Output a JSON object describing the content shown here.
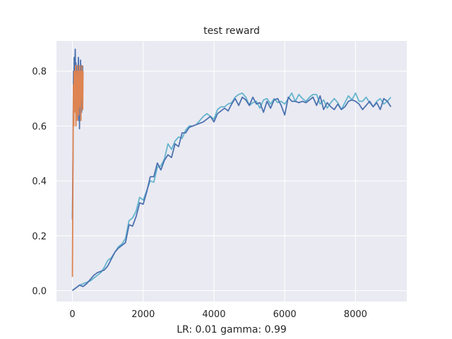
{
  "chart_data": {
    "type": "line",
    "title": "test reward",
    "xlabel": "LR: 0.01 gamma: 0.99",
    "ylabel": "",
    "xlim": [
      -450,
      9450
    ],
    "ylim": [
      -0.04,
      0.91
    ],
    "xticks": [
      0,
      2000,
      4000,
      6000,
      8000
    ],
    "xtick_labels": [
      "0",
      "2000",
      "4000",
      "6000",
      "8000"
    ],
    "yticks": [
      0.0,
      0.2,
      0.4,
      0.6,
      0.8
    ],
    "ytick_labels": [
      "0.0",
      "0.2",
      "0.4",
      "0.6",
      "0.8"
    ],
    "grid": true,
    "background": "#eaeaf2",
    "series": [
      {
        "color": "#4c72b0",
        "x": [
          0,
          100,
          200,
          300,
          400,
          500,
          600,
          700,
          800,
          900,
          1000,
          1100,
          1200,
          1300,
          1400,
          1500,
          1600,
          1700,
          1800,
          1900,
          2000,
          2100,
          2200,
          2300,
          2400,
          2500,
          2600,
          2700,
          2800,
          2900,
          3000,
          3100,
          3200,
          3300,
          3400,
          3500,
          3600,
          3700,
          3800,
          3900,
          4000,
          4100,
          4200,
          4300,
          4400,
          4500,
          4600,
          4700,
          4800,
          4900,
          5000,
          5100,
          5200,
          5300,
          5400,
          5500,
          5600,
          5700,
          5800,
          5900,
          6000,
          6100,
          6200,
          6300,
          6400,
          6500,
          6600,
          6700,
          6800,
          6900,
          7000,
          7100,
          7200,
          7300,
          7400,
          7500,
          7600,
          7700,
          7800,
          7900,
          8000,
          8100,
          8200,
          8300,
          8400,
          8500,
          8600,
          8700,
          8800,
          8900,
          9000
        ],
        "y": [
          0.0,
          0.01,
          0.02,
          0.015,
          0.025,
          0.04,
          0.055,
          0.065,
          0.07,
          0.075,
          0.09,
          0.115,
          0.14,
          0.155,
          0.165,
          0.175,
          0.24,
          0.235,
          0.27,
          0.32,
          0.315,
          0.36,
          0.415,
          0.415,
          0.465,
          0.44,
          0.475,
          0.495,
          0.485,
          0.535,
          0.525,
          0.575,
          0.575,
          0.595,
          0.6,
          0.605,
          0.61,
          0.615,
          0.625,
          0.635,
          0.615,
          0.645,
          0.655,
          0.665,
          0.655,
          0.68,
          0.7,
          0.675,
          0.705,
          0.695,
          0.675,
          0.705,
          0.68,
          0.685,
          0.65,
          0.69,
          0.665,
          0.695,
          0.7,
          0.675,
          0.64,
          0.705,
          0.69,
          0.69,
          0.685,
          0.69,
          0.685,
          0.695,
          0.705,
          0.675,
          0.71,
          0.66,
          0.685,
          0.67,
          0.66,
          0.68,
          0.66,
          0.67,
          0.69,
          0.695,
          0.69,
          0.68,
          0.66,
          0.675,
          0.69,
          0.67,
          0.685,
          0.66,
          0.7,
          0.69,
          0.67
        ]
      },
      {
        "color": "#64b5cd",
        "x": [
          0,
          100,
          200,
          300,
          400,
          500,
          600,
          700,
          800,
          900,
          1000,
          1100,
          1200,
          1300,
          1400,
          1500,
          1600,
          1700,
          1800,
          1900,
          2000,
          2100,
          2200,
          2300,
          2400,
          2500,
          2600,
          2700,
          2800,
          2900,
          3000,
          3100,
          3200,
          3300,
          3400,
          3500,
          3600,
          3700,
          3800,
          3900,
          4000,
          4100,
          4200,
          4300,
          4400,
          4500,
          4600,
          4700,
          4800,
          4900,
          5000,
          5100,
          5200,
          5300,
          5400,
          5500,
          5600,
          5700,
          5800,
          5900,
          6000,
          6100,
          6200,
          6300,
          6400,
          6500,
          6600,
          6700,
          6800,
          6900,
          7000,
          7100,
          7200,
          7300,
          7400,
          7500,
          7600,
          7700,
          7800,
          7900,
          8000,
          8100,
          8200,
          8300,
          8400,
          8500,
          8600,
          8700,
          8800,
          8900,
          9000
        ],
        "y": [
          0.0,
          0.01,
          0.02,
          0.025,
          0.03,
          0.035,
          0.045,
          0.055,
          0.065,
          0.085,
          0.11,
          0.12,
          0.14,
          0.16,
          0.17,
          0.19,
          0.255,
          0.265,
          0.29,
          0.34,
          0.33,
          0.365,
          0.4,
          0.395,
          0.45,
          0.455,
          0.48,
          0.535,
          0.515,
          0.545,
          0.56,
          0.555,
          0.585,
          0.6,
          0.6,
          0.605,
          0.62,
          0.635,
          0.645,
          0.635,
          0.625,
          0.66,
          0.67,
          0.67,
          0.68,
          0.685,
          0.705,
          0.715,
          0.72,
          0.705,
          0.675,
          0.685,
          0.69,
          0.665,
          0.695,
          0.7,
          0.68,
          0.7,
          0.685,
          0.69,
          0.68,
          0.7,
          0.72,
          0.69,
          0.715,
          0.7,
          0.69,
          0.705,
          0.715,
          0.715,
          0.68,
          0.695,
          0.665,
          0.685,
          0.7,
          0.685,
          0.66,
          0.685,
          0.71,
          0.695,
          0.72,
          0.69,
          0.69,
          0.705,
          0.685,
          0.67,
          0.69,
          0.7,
          0.68,
          0.69,
          0.705
        ]
      },
      {
        "color": "#4c72b0",
        "x": [
          0,
          10,
          20,
          30,
          40,
          50,
          60,
          70,
          80,
          90,
          100,
          110,
          120,
          130,
          140,
          150,
          160,
          170,
          180,
          190,
          200,
          210,
          220,
          230,
          240,
          250,
          260,
          270,
          280,
          290
        ],
        "y": [
          0.26,
          0.4,
          0.6,
          0.8,
          0.65,
          0.85,
          0.7,
          0.82,
          0.88,
          0.75,
          0.83,
          0.7,
          0.8,
          0.65,
          0.82,
          0.72,
          0.78,
          0.85,
          0.62,
          0.8,
          0.59,
          0.8,
          0.72,
          0.84,
          0.7,
          0.82,
          0.65,
          0.8,
          0.7,
          0.82
        ]
      },
      {
        "color": "#dd8452",
        "x": [
          0,
          10,
          20,
          30,
          40,
          50,
          60,
          70,
          80,
          90,
          100,
          110,
          120,
          130,
          140,
          150,
          160,
          170,
          180,
          190,
          200,
          210,
          220,
          230,
          240,
          250,
          260,
          270,
          280,
          290,
          300
        ],
        "y": [
          0.05,
          0.3,
          0.55,
          0.75,
          0.6,
          0.8,
          0.65,
          0.78,
          0.68,
          0.82,
          0.6,
          0.8,
          0.7,
          0.76,
          0.62,
          0.82,
          0.7,
          0.78,
          0.64,
          0.8,
          0.67,
          0.82,
          0.72,
          0.78,
          0.62,
          0.8,
          0.7,
          0.82,
          0.74,
          0.66,
          0.8
        ]
      }
    ]
  }
}
